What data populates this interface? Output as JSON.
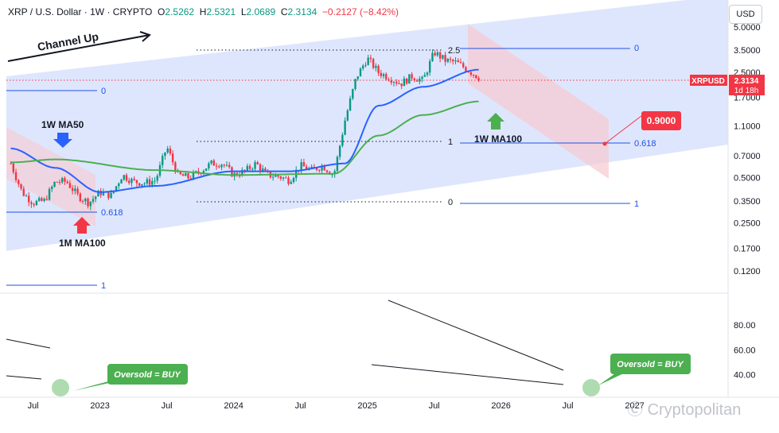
{
  "header": {
    "symbol": "XRP / U.S. Dollar · 1W · CRYPTO",
    "o_label": "O",
    "o_value": "2.5262",
    "h_label": "H",
    "h_value": "2.5321",
    "l_label": "L",
    "l_value": "2.0689",
    "c_label": "C",
    "c_value": "2.3134",
    "change": "−0.2127 (−8.42%)"
  },
  "currency_button": "USD",
  "watermark": "Cryptopolitan",
  "colors": {
    "up": "#089981",
    "down": "#f23645",
    "ma50": "#2962ff",
    "ma100": "#4caf50",
    "channel": "#c8d5fb",
    "bear_channel": "#f8c9d0",
    "fib": "#1e53e5",
    "badge": "#f23645"
  },
  "chart_data": [
    {
      "type": "candlestick",
      "title": "XRP / U.S. Dollar · 1W · CRYPTO",
      "y_scale": "log",
      "ylim": [
        0.1,
        5.5
      ],
      "y_ticks": [
        "5.0000",
        "3.5000",
        "2.5000",
        "1.7000",
        "1.1000",
        "0.7000",
        "0.5000",
        "0.3500",
        "0.2500",
        "0.1700",
        "0.1200"
      ],
      "x_ticks": [
        "Jul",
        "2023",
        "Jul",
        "2024",
        "Jul",
        "2025",
        "Jul",
        "2026",
        "Jul",
        "2027"
      ],
      "last_price": {
        "label": "XRPUSD",
        "value": "2.3134",
        "countdown": "1d 18h"
      },
      "price_path": [
        [
          "2022-05",
          0.62
        ],
        [
          "2022-06",
          0.4
        ],
        [
          "2022-07",
          0.34
        ],
        [
          "2022-08",
          0.35
        ],
        [
          "2022-09",
          0.47
        ],
        [
          "2022-10",
          0.47
        ],
        [
          "2022-11",
          0.38
        ],
        [
          "2022-12",
          0.34
        ],
        [
          "2023-01",
          0.4
        ],
        [
          "2023-02",
          0.38
        ],
        [
          "2023-03",
          0.52
        ],
        [
          "2023-04",
          0.47
        ],
        [
          "2023-05",
          0.46
        ],
        [
          "2023-06",
          0.48
        ],
        [
          "2023-07",
          0.8
        ],
        [
          "2023-08",
          0.52
        ],
        [
          "2023-09",
          0.5
        ],
        [
          "2023-10",
          0.55
        ],
        [
          "2023-11",
          0.62
        ],
        [
          "2023-12",
          0.62
        ],
        [
          "2024-01",
          0.52
        ],
        [
          "2024-02",
          0.55
        ],
        [
          "2024-03",
          0.62
        ],
        [
          "2024-04",
          0.52
        ],
        [
          "2024-05",
          0.51
        ],
        [
          "2024-06",
          0.48
        ],
        [
          "2024-07",
          0.6
        ],
        [
          "2024-08",
          0.56
        ],
        [
          "2024-09",
          0.6
        ],
        [
          "2024-10",
          0.52
        ],
        [
          "2024-11",
          1.2
        ],
        [
          "2024-12",
          2.3
        ],
        [
          "2025-01",
          3.1
        ],
        [
          "2025-02",
          2.5
        ],
        [
          "2025-03",
          2.3
        ],
        [
          "2025-04",
          2.1
        ],
        [
          "2025-05",
          2.35
        ],
        [
          "2025-06",
          2.2
        ],
        [
          "2025-07",
          3.4
        ],
        [
          "2025-08",
          3.0
        ],
        [
          "2025-09",
          2.9
        ],
        [
          "2025-10",
          2.6
        ],
        [
          "2025-11",
          2.31
        ]
      ],
      "ma_series": [
        {
          "name": "1W MA50",
          "values": [
            [
              "2022-05",
              0.78
            ],
            [
              "2022-09",
              0.58
            ],
            [
              "2023-01",
              0.4
            ],
            [
              "2023-06",
              0.44
            ],
            [
              "2024-01",
              0.55
            ],
            [
              "2024-06",
              0.55
            ],
            [
              "2024-11",
              0.62
            ],
            [
              "2025-02",
              1.5
            ],
            [
              "2025-06",
              2.0
            ],
            [
              "2025-11",
              2.6
            ]
          ]
        },
        {
          "name": "1W MA100",
          "values": [
            [
              "2022-05",
              0.63
            ],
            [
              "2022-09",
              0.66
            ],
            [
              "2023-06",
              0.56
            ],
            [
              "2024-01",
              0.52
            ],
            [
              "2024-10",
              0.53
            ],
            [
              "2025-02",
              0.95
            ],
            [
              "2025-06",
              1.3
            ],
            [
              "2025-11",
              1.6
            ]
          ]
        }
      ],
      "annotations": [
        {
          "name": "channel-up-label",
          "text": "Channel Up"
        },
        {
          "name": "ma50-label",
          "text": "1W MA50"
        },
        {
          "name": "ma100-label",
          "text": "1W MA100"
        },
        {
          "name": "monthly-ma100-label",
          "text": "1M MA100"
        },
        {
          "name": "target-badge",
          "text": "0.9000"
        }
      ],
      "fib_levels": [
        {
          "label": "2.5",
          "price": 3.5
        },
        {
          "label": "1",
          "price": 0.93
        },
        {
          "label": "0",
          "price": 0.38
        },
        {
          "label": "0",
          "price": 3.5
        },
        {
          "label": "0.618",
          "price": 0.9
        },
        {
          "label": "1",
          "price": 0.38
        },
        {
          "label": "0",
          "price": 2.0
        },
        {
          "label": "0.618",
          "price": 0.33
        },
        {
          "label": "1",
          "price": 0.13
        }
      ]
    },
    {
      "type": "line",
      "title": "",
      "y_ticks": [
        "80.00",
        "60.00",
        "40.00"
      ],
      "ylim": [
        25,
        100
      ],
      "callouts": [
        {
          "text": "Oversold = BUY"
        },
        {
          "text": "Oversold = BUY"
        }
      ]
    }
  ]
}
